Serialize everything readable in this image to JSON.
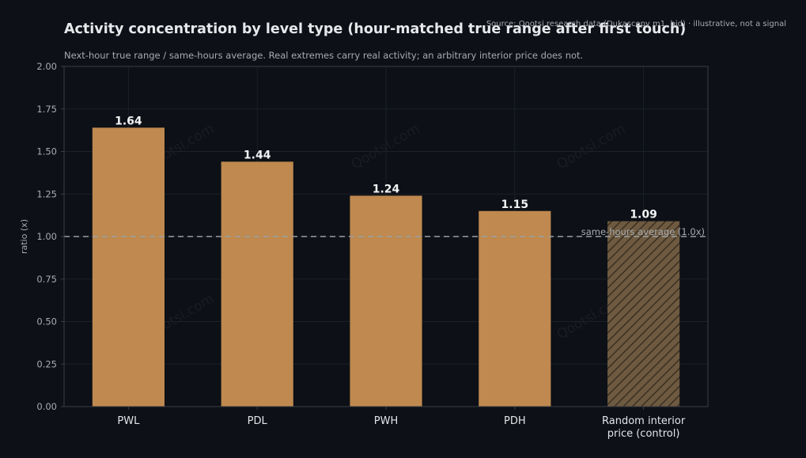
{
  "header": {
    "title": "Activity concentration by level type (hour-matched true range after first touch)",
    "subtitle": "Next-hour true range / same-hours average. Real extremes carry real activity; an arbitrary interior price does not.",
    "source": "Source: Qootsi research data (Dukascopy m1, bid) · illustrative, not a signal",
    "watermark": "Qootsi.com"
  },
  "colors": {
    "background": "#0d1016",
    "bar": "#bf894f",
    "control_bar": "#6e5a40",
    "hatch": "#3a2f22",
    "reference_line": "#9aa0a6",
    "grid": "#1c2028",
    "axis": "#3a3e45",
    "tick_text": "#a8abb0",
    "title_text": "#e6e8eb",
    "value_label": "#f2f3f5"
  },
  "chart_data": {
    "type": "bar",
    "title": "Activity concentration by level type (hour-matched true range after first touch)",
    "subtitle": "Next-hour true range / same-hours average. Real extremes carry real activity; an arbitrary interior price does not.",
    "xlabel": "",
    "ylabel": "ratio (x)",
    "categories": [
      "PWL",
      "PDL",
      "PWH",
      "PDH",
      "Random interior price (control)"
    ],
    "category_lines": [
      [
        "PWL"
      ],
      [
        "PDL"
      ],
      [
        "PWH"
      ],
      [
        "PDH"
      ],
      [
        "Random interior",
        "price (control)"
      ]
    ],
    "values": [
      1.64,
      1.44,
      1.24,
      1.15,
      1.09
    ],
    "value_labels": [
      "1.64",
      "1.44",
      "1.24",
      "1.15",
      "1.09"
    ],
    "hatched": [
      false,
      false,
      false,
      false,
      true
    ],
    "ylim": [
      0,
      2.0
    ],
    "yticks": [
      0,
      0.25,
      0.5,
      0.75,
      1.0,
      1.25,
      1.5,
      1.75,
      2.0
    ],
    "ytick_labels": [
      "0.00",
      "0.25",
      "0.50",
      "0.75",
      "1.00",
      "1.25",
      "1.50",
      "1.75",
      "2.00"
    ],
    "reference_line": {
      "value": 1.0,
      "label": "same-hours average (1.0x)"
    },
    "grid": true,
    "legend": "none"
  }
}
